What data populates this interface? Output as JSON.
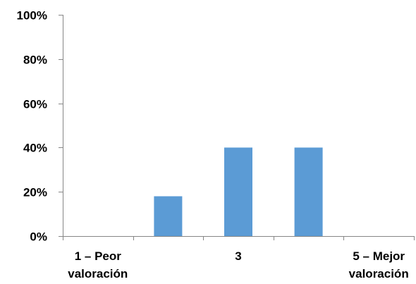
{
  "chart_data": {
    "type": "bar",
    "title": "",
    "xlabel": "",
    "ylabel": "",
    "categories": [
      [
        "1 – Peor",
        "valoración"
      ],
      [
        ""
      ],
      [
        "3"
      ],
      [
        ""
      ],
      [
        "5 – Mejor",
        "valoración"
      ]
    ],
    "values": [
      0,
      0.18,
      0.4,
      0.4,
      0
    ],
    "ylim": [
      0,
      1
    ],
    "yticks": [
      0,
      0.2,
      0.4,
      0.6,
      0.8,
      1.0
    ],
    "ytick_labels": [
      "0%",
      "20%",
      "40%",
      "60%",
      "80%",
      "100%"
    ],
    "grid": false,
    "legend": "none",
    "colors": {
      "bar": "#5b9bd5",
      "axis": "#868686",
      "text": "#000000"
    }
  }
}
